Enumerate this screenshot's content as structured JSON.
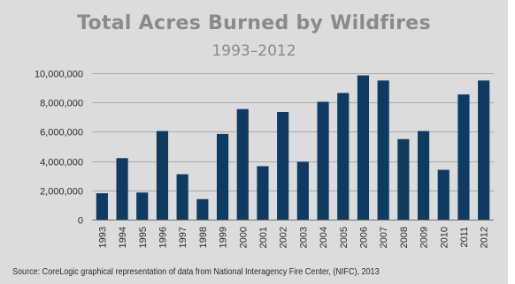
{
  "chart_data": {
    "type": "bar",
    "title": "Total Acres Burned by Wildfires",
    "subtitle": "1993–2012",
    "xlabel": "",
    "ylabel": "",
    "categories": [
      "1993",
      "1994",
      "1995",
      "1996",
      "1997",
      "1998",
      "1999",
      "2000",
      "2001",
      "2002",
      "2003",
      "2004",
      "2005",
      "2006",
      "2007",
      "2008",
      "2009",
      "2010",
      "2011",
      "2012"
    ],
    "values": [
      1800000,
      4200000,
      1850000,
      6050000,
      3100000,
      1400000,
      5850000,
      7550000,
      3650000,
      7350000,
      3950000,
      8050000,
      8650000,
      9850000,
      9500000,
      5500000,
      6050000,
      3400000,
      8550000,
      9500000
    ],
    "ylim": [
      0,
      10000000
    ],
    "yticks": [
      0,
      2000000,
      4000000,
      6000000,
      8000000,
      10000000
    ],
    "ytick_labels": [
      "0",
      "2,000,000",
      "4,000,000",
      "6,000,000",
      "8,000,000",
      "10,000,000"
    ],
    "grid": true,
    "legend": "none",
    "colors": {
      "bar": "#0f3b63",
      "background": "#dcdcdc",
      "title": "#8a8a8a"
    },
    "source": "Source: CoreLogic graphical representation of data from National Interagency Fire Center, (NIFC), 2013"
  }
}
